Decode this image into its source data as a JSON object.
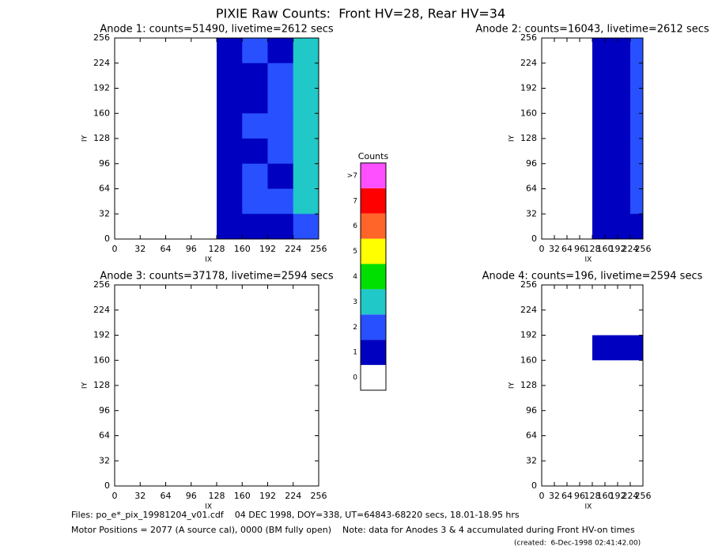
{
  "title": "PIXIE Raw Counts:  Front HV=28, Rear HV=34",
  "colorbar": {
    "title": "Counts",
    "labels": [
      "0",
      "1",
      "2",
      "3",
      "4",
      "5",
      "6",
      "7",
      ">7"
    ],
    "colors": [
      "#ffffff",
      "#0000c0",
      "#2850ff",
      "#20c8c8",
      "#00e000",
      "#ffff00",
      "#ff6428",
      "#ff0000",
      "#ff50ff"
    ]
  },
  "footer": {
    "files": "Files: po_e*_pix_19981204_v01.cdf    04 DEC 1998, DOY=338, UT=64843-68220 secs, 18.01-18.95 hrs",
    "motor": "Motor Positions = 2077 (A source cal), 0000 (BM fully open)    Note: data for Anodes 3 & 4 accumulated during Front HV-on times",
    "created": "(created:  6-Dec-1998 02:41:42.00)"
  },
  "chart_data": [
    {
      "type": "heatmap",
      "title": "Anode 1: counts=51490, livetime=2612 secs",
      "xlabel": "IX",
      "ylabel": "IY",
      "xlim": [
        0,
        256
      ],
      "ylim": [
        0,
        256
      ],
      "xticks": [
        0,
        32,
        64,
        96,
        128,
        160,
        192,
        224,
        256
      ],
      "yticks": [
        0,
        32,
        64,
        96,
        128,
        160,
        192,
        224,
        256
      ],
      "z": [
        [
          0,
          0,
          0,
          0,
          1,
          2,
          1,
          3
        ],
        [
          0,
          0,
          0,
          0,
          1,
          1,
          2,
          3
        ],
        [
          0,
          0,
          0,
          0,
          1,
          1,
          2,
          3
        ],
        [
          0,
          0,
          0,
          0,
          1,
          2,
          2,
          3
        ],
        [
          0,
          0,
          0,
          0,
          1,
          1,
          2,
          3
        ],
        [
          0,
          0,
          0,
          0,
          1,
          2,
          1,
          3
        ],
        [
          0,
          0,
          0,
          0,
          1,
          2,
          2,
          3
        ],
        [
          0,
          0,
          0,
          0,
          1,
          1,
          1,
          2
        ]
      ]
    },
    {
      "type": "heatmap",
      "title": "Anode 2: counts=16043, livetime=2612 secs",
      "xlabel": "IX",
      "ylabel": "IY",
      "xlim": [
        0,
        256
      ],
      "ylim": [
        0,
        256
      ],
      "xticks": [
        0,
        32,
        64,
        96,
        128,
        160,
        192,
        224,
        256
      ],
      "yticks": [
        0,
        32,
        64,
        96,
        128,
        160,
        192,
        224,
        256
      ],
      "z": [
        [
          0,
          0,
          0,
          0,
          1,
          1,
          1,
          2
        ],
        [
          0,
          0,
          0,
          0,
          1,
          1,
          1,
          2
        ],
        [
          0,
          0,
          0,
          0,
          1,
          1,
          1,
          2
        ],
        [
          0,
          0,
          0,
          0,
          1,
          1,
          1,
          2
        ],
        [
          0,
          0,
          0,
          0,
          1,
          1,
          1,
          2
        ],
        [
          0,
          0,
          0,
          0,
          1,
          1,
          1,
          2
        ],
        [
          0,
          0,
          0,
          0,
          1,
          1,
          1,
          2
        ],
        [
          0,
          0,
          0,
          0,
          1,
          1,
          1,
          1
        ]
      ]
    },
    {
      "type": "heatmap",
      "title": "Anode 3: counts=37178, livetime=2594 secs",
      "xlabel": "IX",
      "ylabel": "IY",
      "xlim": [
        0,
        256
      ],
      "ylim": [
        0,
        256
      ],
      "xticks": [
        0,
        32,
        64,
        96,
        128,
        160,
        192,
        224,
        256
      ],
      "yticks": [
        0,
        32,
        64,
        96,
        128,
        160,
        192,
        224,
        256
      ],
      "z": [
        [
          0,
          0,
          0,
          0,
          0,
          0,
          0,
          0
        ],
        [
          0,
          0,
          0,
          0,
          0,
          0,
          0,
          0
        ],
        [
          0,
          0,
          0,
          0,
          0,
          0,
          0,
          0
        ],
        [
          0,
          0,
          0,
          0,
          0,
          0,
          0,
          0
        ],
        [
          0,
          0,
          0,
          0,
          0,
          0,
          0,
          0
        ],
        [
          0,
          0,
          0,
          0,
          0,
          0,
          0,
          0
        ],
        [
          0,
          0,
          0,
          0,
          0,
          0,
          0,
          0
        ],
        [
          0,
          0,
          0,
          0,
          0,
          0,
          0,
          0
        ]
      ]
    },
    {
      "type": "heatmap",
      "title": "Anode 4: counts=196, livetime=2594 secs",
      "xlabel": "IX",
      "ylabel": "IY",
      "xlim": [
        0,
        256
      ],
      "ylim": [
        0,
        256
      ],
      "xticks": [
        0,
        32,
        64,
        96,
        128,
        160,
        192,
        224,
        256
      ],
      "yticks": [
        0,
        32,
        64,
        96,
        128,
        160,
        192,
        224,
        256
      ],
      "z": [
        [
          0,
          0,
          0,
          0,
          0,
          0,
          0,
          0
        ],
        [
          0,
          0,
          0,
          0,
          0,
          0,
          0,
          0
        ],
        [
          0,
          0,
          0,
          0,
          1,
          1,
          1,
          1
        ],
        [
          0,
          0,
          0,
          0,
          0,
          0,
          0,
          0
        ],
        [
          0,
          0,
          0,
          0,
          0,
          0,
          0,
          0
        ],
        [
          0,
          0,
          0,
          0,
          0,
          0,
          0,
          0
        ],
        [
          0,
          0,
          0,
          0,
          0,
          0,
          0,
          0
        ],
        [
          0,
          0,
          0,
          0,
          0,
          0,
          0,
          0
        ]
      ]
    }
  ]
}
